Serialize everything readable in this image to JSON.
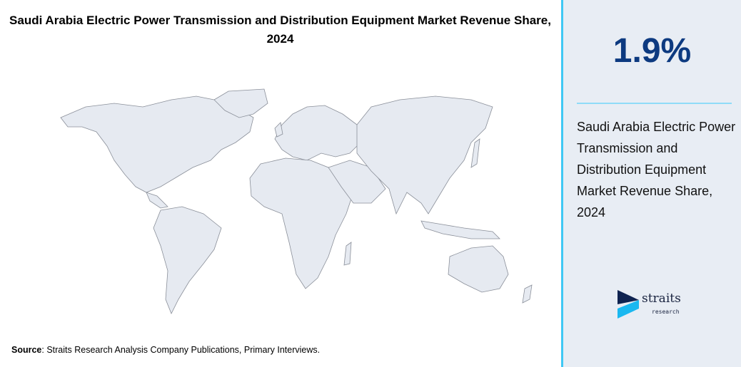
{
  "title": "Saudi Arabia Electric Power Transmission and Distribution Equipment Market Revenue Share, 2024",
  "source_label": "Source",
  "source_text": ": Straits Research Analysis Company Publications, Primary Interviews.",
  "panel": {
    "value": "1.9%",
    "description": "Saudi Arabia Electric Power Transmission and Distribution Equipment Market Revenue Share, 2024"
  },
  "logo": {
    "name": "straits",
    "sub": "research"
  },
  "colors": {
    "accent": "#40c8f4",
    "value": "#0d3a80",
    "land": "#e6eaf1",
    "panel_bg": "#e8edf4"
  }
}
